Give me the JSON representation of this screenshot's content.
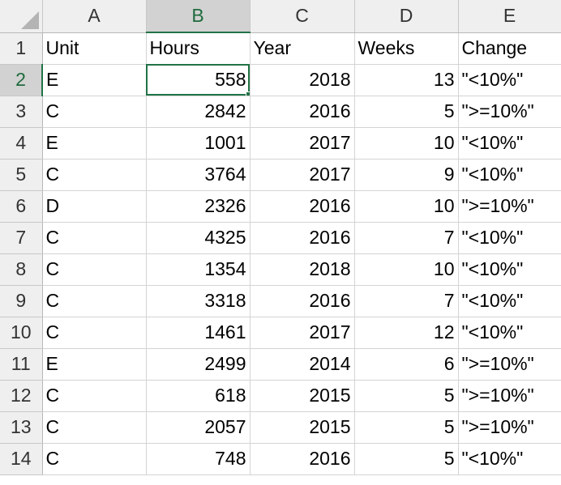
{
  "sheet": {
    "columns": [
      "A",
      "B",
      "C",
      "D",
      "E"
    ],
    "selected_column": "B",
    "selected_row": "2",
    "rows": [
      {
        "num": "1",
        "cells": [
          "Unit",
          "Hours",
          "Year",
          "Weeks",
          "Change"
        ]
      },
      {
        "num": "2",
        "cells": [
          "E",
          "558",
          "2018",
          "13",
          "\"<10%\""
        ]
      },
      {
        "num": "3",
        "cells": [
          "C",
          "2842",
          "2016",
          "5",
          "\">=10%\""
        ]
      },
      {
        "num": "4",
        "cells": [
          "E",
          "1001",
          "2017",
          "10",
          "\"<10%\""
        ]
      },
      {
        "num": "5",
        "cells": [
          "C",
          "3764",
          "2017",
          "9",
          "\"<10%\""
        ]
      },
      {
        "num": "6",
        "cells": [
          "D",
          "2326",
          "2016",
          "10",
          "\">=10%\""
        ]
      },
      {
        "num": "7",
        "cells": [
          "C",
          "4325",
          "2016",
          "7",
          "\"<10%\""
        ]
      },
      {
        "num": "8",
        "cells": [
          "C",
          "1354",
          "2018",
          "10",
          "\"<10%\""
        ]
      },
      {
        "num": "9",
        "cells": [
          "C",
          "3318",
          "2016",
          "7",
          "\"<10%\""
        ]
      },
      {
        "num": "10",
        "cells": [
          "C",
          "1461",
          "2017",
          "12",
          "\"<10%\""
        ]
      },
      {
        "num": "11",
        "cells": [
          "E",
          "2499",
          "2014",
          "6",
          "\">=10%\""
        ]
      },
      {
        "num": "12",
        "cells": [
          "C",
          "618",
          "2015",
          "5",
          "\">=10%\""
        ]
      },
      {
        "num": "13",
        "cells": [
          "C",
          "2057",
          "2015",
          "5",
          "\">=10%\""
        ]
      },
      {
        "num": "14",
        "cells": [
          "C",
          "748",
          "2016",
          "5",
          "\"<10%\""
        ]
      }
    ]
  },
  "colors": {
    "accent": "#217346",
    "header_bg": "#efefef",
    "header_selected_bg": "#d2d2d2",
    "gridline": "#d4d4d4"
  }
}
